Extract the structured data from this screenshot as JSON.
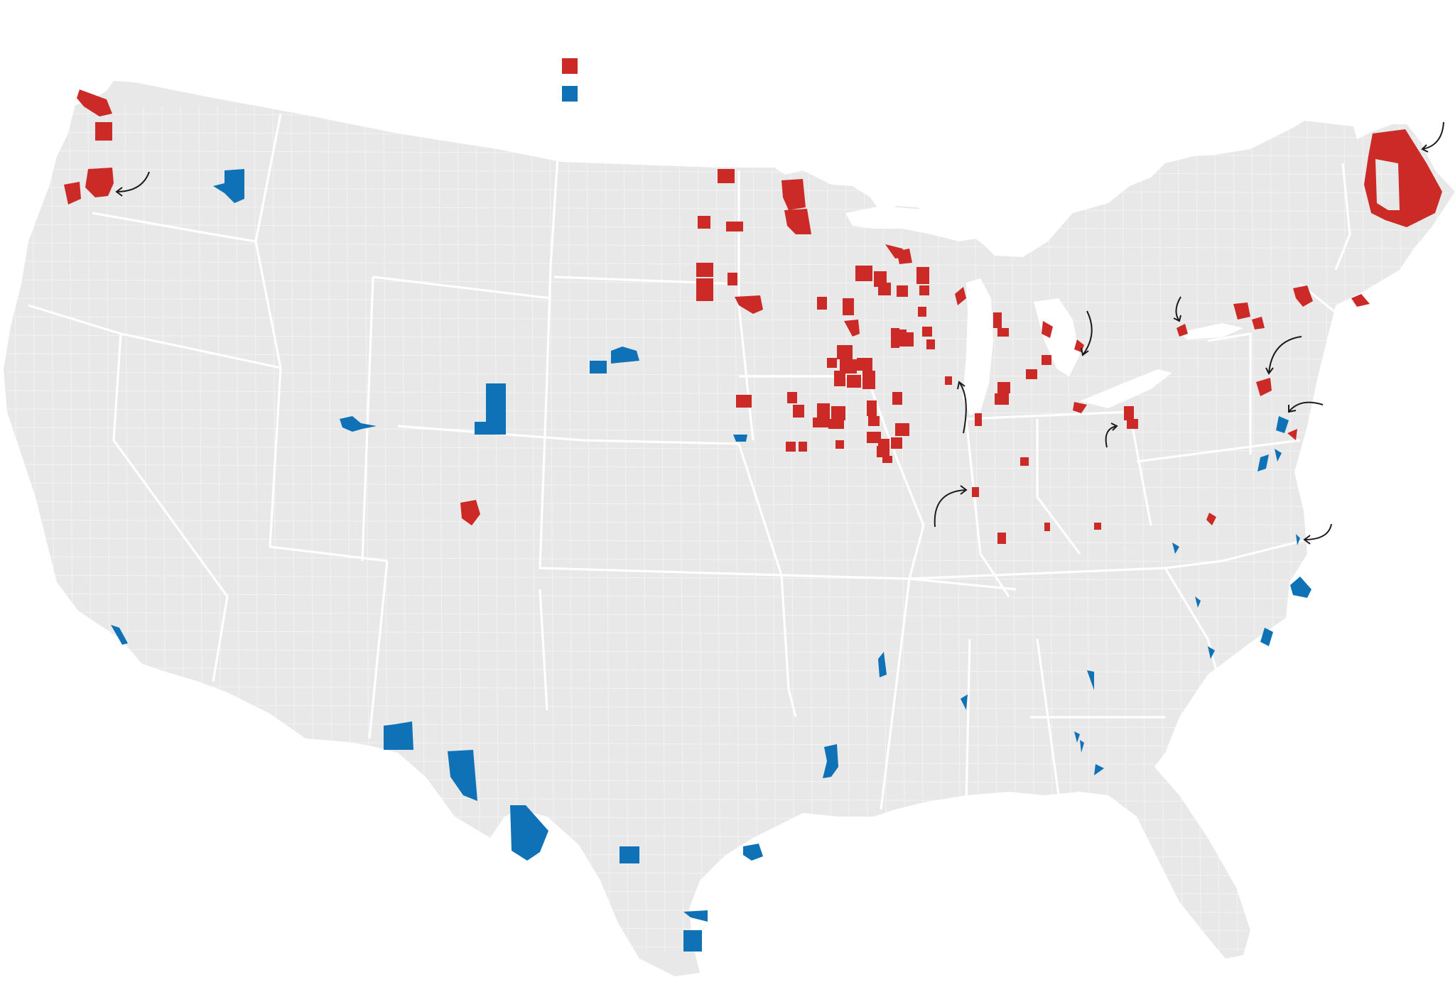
{
  "colors": {
    "flip_republican": "#cc2a27",
    "flip_democrat": "#0f72b6",
    "land": "#e8e8e8",
    "borders": "#ffffff"
  },
  "legend": {
    "items": [
      {
        "key": "red",
        "color": "#cc2a27",
        "label": ""
      },
      {
        "key": "blue",
        "color": "#0f72b6",
        "label": ""
      }
    ]
  },
  "map": {
    "region": "contiguous-united-states",
    "unit": "county",
    "highlight_groups": [
      "red",
      "blue"
    ],
    "callout_arrow_count": 11
  }
}
